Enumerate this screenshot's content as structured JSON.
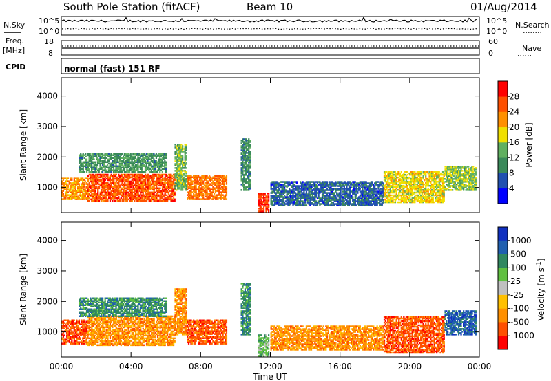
{
  "header": {
    "station": "South Pole Station (fitACF)",
    "beam": "Beam 10",
    "date": "01/Aug/2014"
  },
  "mode_text": "normal (fast) 151 RF",
  "side_labels": {
    "nsky": "N.Sky",
    "nsearch": "N.Search",
    "freq": "Freq.",
    "mhz": "[MHz]",
    "nave": "Nave",
    "cpid": "CPID"
  },
  "noise_axis": {
    "top": "10^5",
    "bottom": "10^0"
  },
  "freq_axis": {
    "top": "18",
    "bottom": "8"
  },
  "nave_axis": {
    "top": "60",
    "bottom": "0"
  },
  "colors": {
    "power_scale": [
      "#0000ff",
      "#2050b0",
      "#3a8a5a",
      "#60b060",
      "#f0e000",
      "#ff9000",
      "#ff5000",
      "#ff0000"
    ],
    "velocity_scale": [
      "#1030c0",
      "#2060b0",
      "#308860",
      "#60c040",
      "#c0c0c0",
      "#ffc000",
      "#ff9000",
      "#ff5000",
      "#ff0000"
    ]
  },
  "chart_data": [
    {
      "type": "heatmap",
      "title": "",
      "xlabel": "",
      "ylabel": "Slant Range [km]",
      "x_ticks": [
        "00:00",
        "04:00",
        "08:00",
        "12:00",
        "16:00",
        "20:00",
        "00:00"
      ],
      "xlim_hours": [
        0,
        24
      ],
      "ylim": [
        180,
        4600
      ],
      "y_ticks": [
        1000,
        2000,
        3000,
        4000
      ],
      "colorbar": {
        "label": "Power [dB]",
        "ticks": [
          4,
          8,
          12,
          16,
          20,
          24,
          28
        ],
        "range": [
          0,
          32
        ]
      },
      "regions": [
        {
          "t": [
            0.0,
            1.5
          ],
          "r": [
            600,
            1300
          ],
          "v": 22
        },
        {
          "t": [
            1.5,
            6.5
          ],
          "r": [
            550,
            1450
          ],
          "v": 26
        },
        {
          "t": [
            1.0,
            6.0
          ],
          "r": [
            1500,
            2100
          ],
          "v": 11
        },
        {
          "t": [
            6.5,
            7.2
          ],
          "r": [
            900,
            2400
          ],
          "v": 14
        },
        {
          "t": [
            7.2,
            9.5
          ],
          "r": [
            600,
            1400
          ],
          "v": 24
        },
        {
          "t": [
            10.3,
            10.8
          ],
          "r": [
            900,
            2600
          ],
          "v": 10
        },
        {
          "t": [
            11.3,
            11.9
          ],
          "r": [
            200,
            800
          ],
          "v": 28
        },
        {
          "t": [
            12.0,
            18.5
          ],
          "r": [
            400,
            1200
          ],
          "v": 7
        },
        {
          "t": [
            18.5,
            22.0
          ],
          "r": [
            500,
            1500
          ],
          "v": 18
        },
        {
          "t": [
            22.0,
            23.8
          ],
          "r": [
            900,
            1700
          ],
          "v": 15
        }
      ]
    },
    {
      "type": "heatmap",
      "title": "",
      "xlabel": "Time UT",
      "ylabel": "Slant Range [km]",
      "x_ticks": [
        "00:00",
        "04:00",
        "08:00",
        "12:00",
        "16:00",
        "20:00",
        "00:00"
      ],
      "xlim_hours": [
        0,
        24
      ],
      "ylim": [
        180,
        4600
      ],
      "y_ticks": [
        1000,
        2000,
        3000,
        4000
      ],
      "colorbar": {
        "label": "Velocity [m s^-1]",
        "ticks": [
          1000,
          500,
          100,
          25,
          -25,
          -100,
          -500,
          -1000
        ]
      },
      "regions": [
        {
          "t": [
            0.0,
            1.5
          ],
          "r": [
            600,
            1400
          ],
          "v": -300
        },
        {
          "t": [
            1.5,
            6.5
          ],
          "r": [
            550,
            1500
          ],
          "v": -150
        },
        {
          "t": [
            1.0,
            6.0
          ],
          "r": [
            1500,
            2100
          ],
          "v": 80
        },
        {
          "t": [
            6.5,
            7.2
          ],
          "r": [
            900,
            2400
          ],
          "v": -100
        },
        {
          "t": [
            7.2,
            9.5
          ],
          "r": [
            600,
            1400
          ],
          "v": -400
        },
        {
          "t": [
            10.3,
            10.8
          ],
          "r": [
            900,
            2600
          ],
          "v": 200
        },
        {
          "t": [
            11.3,
            11.9
          ],
          "r": [
            200,
            900
          ],
          "v": 30
        },
        {
          "t": [
            12.0,
            18.5
          ],
          "r": [
            400,
            1200
          ],
          "v": -200
        },
        {
          "t": [
            18.5,
            22.0
          ],
          "r": [
            300,
            1500
          ],
          "v": -500
        },
        {
          "t": [
            22.0,
            23.8
          ],
          "r": [
            900,
            1700
          ],
          "v": 400
        }
      ]
    }
  ]
}
